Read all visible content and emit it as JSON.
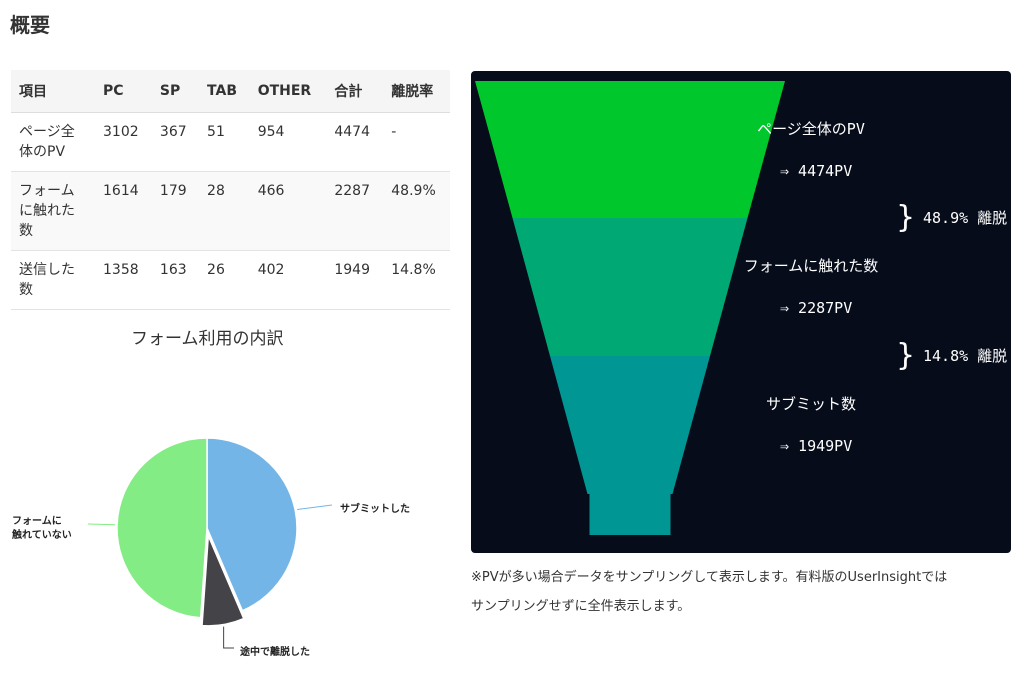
{
  "page": {
    "title": "概要"
  },
  "table": {
    "headers": [
      "項目",
      "PC",
      "SP",
      "TAB",
      "OTHER",
      "合計",
      "離脱率"
    ],
    "rows": [
      {
        "label": "ページ全体のPV",
        "pc": "3102",
        "sp": "367",
        "tab": "51",
        "other": "954",
        "total": "4474",
        "rate": "-"
      },
      {
        "label": "フォームに触れた数",
        "pc": "1614",
        "sp": "179",
        "tab": "28",
        "other": "466",
        "total": "2287",
        "rate": "48.9%"
      },
      {
        "label": "送信した数",
        "pc": "1358",
        "sp": "163",
        "tab": "26",
        "other": "402",
        "total": "1949",
        "rate": "14.8%"
      }
    ]
  },
  "pie": {
    "title": "フォーム利用の内訳",
    "chart_data": {
      "type": "pie",
      "slices": [
        {
          "label": "サブミットした",
          "value": 1949,
          "color": "#74b5e8"
        },
        {
          "label": "途中で離脱した",
          "value": 338,
          "color": "#434348"
        },
        {
          "label_lines": [
            "フォームに",
            "触れていない"
          ],
          "value": 2187,
          "color": "#84ec84"
        }
      ]
    }
  },
  "funnel": {
    "chart_data": {
      "type": "funnel",
      "stages": [
        {
          "name": "ページ全体のPV",
          "value_text": "⇒ 4474PV",
          "value": 4474,
          "color": "#00c72b"
        },
        {
          "name": "フォームに触れた数",
          "value_text": "⇒ 2287PV",
          "value": 2287,
          "color": "#00a874"
        },
        {
          "name": "サブミット数",
          "value_text": "⇒ 1949PV",
          "value": 1949,
          "color": "#009694"
        }
      ],
      "dropoffs": [
        "48.9% 離脱",
        "14.8% 離脱"
      ]
    }
  },
  "note": {
    "lines": [
      "※PVが多い場合データをサンプリングして表示します。有料版のUserInsightでは",
      "サンプリングせずに全件表示します。"
    ]
  }
}
